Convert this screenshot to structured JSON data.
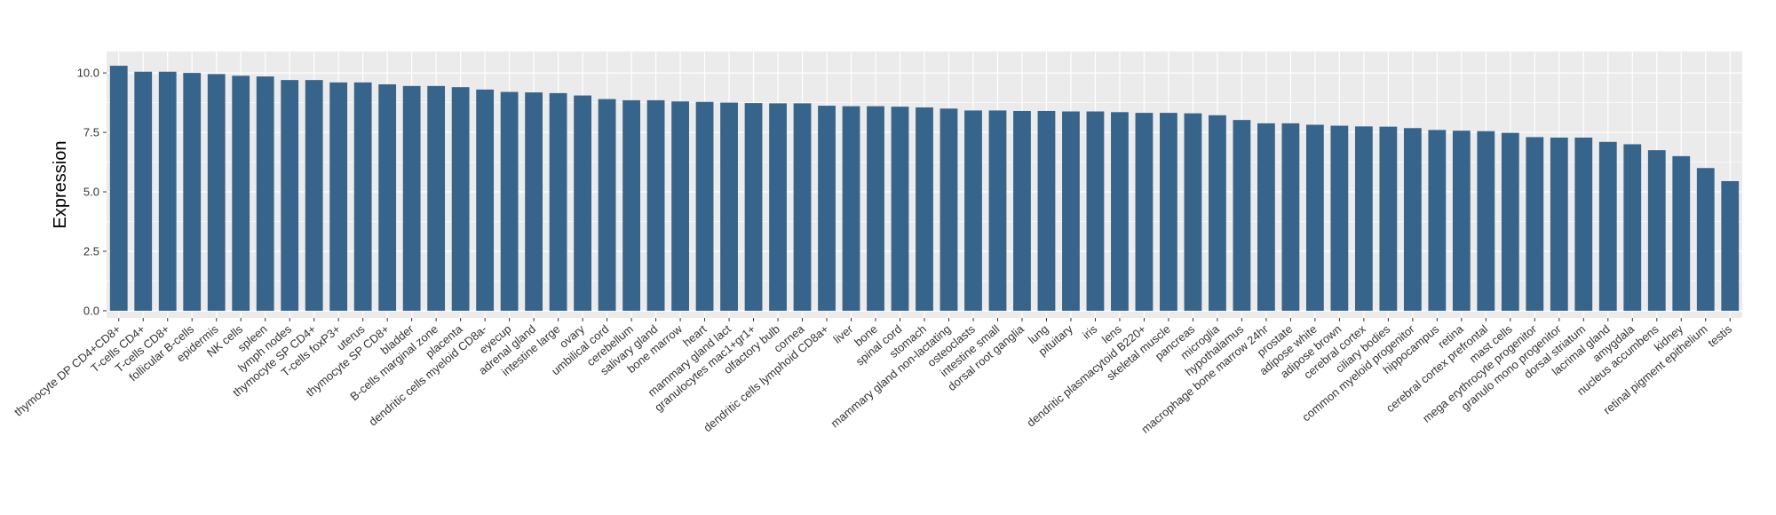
{
  "chart_data": {
    "type": "bar",
    "title": "",
    "xlabel": "",
    "ylabel": "Expression",
    "ylim": [
      -0.3,
      10.9
    ],
    "yticks": [
      0.0,
      2.5,
      5.0,
      7.5,
      10.0
    ],
    "ytick_labels": [
      "0.0",
      "2.5",
      "5.0",
      "7.5",
      "10.0"
    ],
    "grid": true,
    "legend": "none",
    "colors": {
      "bar": "#36648b",
      "panel": "#ebebeb",
      "grid": "#ffffff",
      "text": "#333333"
    },
    "categories": [
      "thymocyte DP CD4+CD8+",
      "T-cells CD4+",
      "T-cells CD8+",
      "follicular B-cells",
      "epidermis",
      "NK cells",
      "spleen",
      "lymph nodes",
      "thymocyte SP CD4+",
      "T-cells foxP3+",
      "uterus",
      "thymocyte SP CD8+",
      "bladder",
      "B-cells marginal zone",
      "placenta",
      "dendritic cells myeloid CD8a-",
      "eyecup",
      "adrenal gland",
      "intestine large",
      "ovary",
      "umbilical cord",
      "cerebellum",
      "salivary gland",
      "bone marrow",
      "heart",
      "mammary gland lact",
      "granulocytes mac1+gr1+",
      "olfactory bulb",
      "cornea",
      "dendritic cells lymphoid CD8a+",
      "liver",
      "bone",
      "spinal cord",
      "stomach",
      "mammary gland non-lactating",
      "osteoclasts",
      "intestine small",
      "dorsal root ganglia",
      "lung",
      "pituitary",
      "iris",
      "lens",
      "dendritic plasmacytoid B220+",
      "skeletal muscle",
      "pancreas",
      "microglia",
      "hypothalamus",
      "macrophage bone marrow 24hr",
      "prostate",
      "adipose white",
      "adipose brown",
      "cerebral cortex",
      "ciliary bodies",
      "common myeloid progenitor",
      "hippocampus",
      "retina",
      "cerebral cortex prefrontal",
      "mast cells",
      "mega erythrocyte progenitor",
      "granulo mono progenitor",
      "dorsal striatum",
      "lacrimal gland",
      "amygdala",
      "nucleus accumbens",
      "kidney",
      "retinal pigment epithelium",
      "testis"
    ],
    "values": [
      10.3,
      10.05,
      10.05,
      10.0,
      9.95,
      9.88,
      9.85,
      9.7,
      9.7,
      9.6,
      9.6,
      9.52,
      9.45,
      9.45,
      9.4,
      9.3,
      9.2,
      9.18,
      9.15,
      9.05,
      8.9,
      8.85,
      8.85,
      8.8,
      8.78,
      8.75,
      8.73,
      8.72,
      8.72,
      8.62,
      8.6,
      8.6,
      8.58,
      8.55,
      8.5,
      8.42,
      8.42,
      8.4,
      8.4,
      8.38,
      8.38,
      8.35,
      8.32,
      8.32,
      8.3,
      8.22,
      8.02,
      7.88,
      7.88,
      7.82,
      7.78,
      7.75,
      7.74,
      7.68,
      7.6,
      7.57,
      7.55,
      7.48,
      7.3,
      7.28,
      7.28,
      7.1,
      7.0,
      6.75,
      6.5,
      6.0,
      5.45
    ]
  }
}
